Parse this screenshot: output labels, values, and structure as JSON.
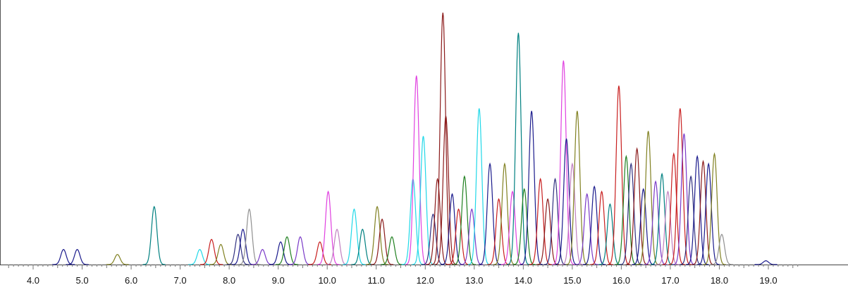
{
  "chart_data": {
    "type": "line",
    "title": "",
    "xlabel": "",
    "ylabel": "",
    "xlim": [
      3.5,
      20.0
    ],
    "ylim": [
      0,
      100
    ],
    "x_ticks": [
      "4.0",
      "5.0",
      "6.0",
      "7.0",
      "8.0",
      "9.0",
      "10.0",
      "11.0",
      "12.0",
      "13.0",
      "14.0",
      "15.0",
      "16.0",
      "17.0",
      "18.0",
      "19.0"
    ],
    "grid": false,
    "legend": "none",
    "series_colors": [
      "#8b1a1a",
      "#008080",
      "#e040e0",
      "#20d8e8",
      "#1a1a8c",
      "#808020",
      "#c81e1e",
      "#208020",
      "#7a3ac8",
      "#303080",
      "#909090",
      "#c080c0"
    ],
    "peaks": [
      {
        "x": 4.62,
        "y": 6,
        "color": "#1a1a8c"
      },
      {
        "x": 4.9,
        "y": 6,
        "color": "#1a1a8c"
      },
      {
        "x": 5.72,
        "y": 4,
        "color": "#808020"
      },
      {
        "x": 6.47,
        "y": 23,
        "color": "#008080"
      },
      {
        "x": 7.4,
        "y": 6,
        "color": "#20d8e8"
      },
      {
        "x": 7.64,
        "y": 10,
        "color": "#c81e1e"
      },
      {
        "x": 7.83,
        "y": 8,
        "color": "#808020"
      },
      {
        "x": 8.18,
        "y": 12,
        "color": "#303080"
      },
      {
        "x": 8.28,
        "y": 14,
        "color": "#1a1a8c"
      },
      {
        "x": 8.41,
        "y": 22,
        "color": "#909090"
      },
      {
        "x": 8.68,
        "y": 6,
        "color": "#7a3ac8"
      },
      {
        "x": 9.05,
        "y": 9,
        "color": "#1a1a8c"
      },
      {
        "x": 9.18,
        "y": 11,
        "color": "#208020"
      },
      {
        "x": 9.45,
        "y": 11,
        "color": "#7a3ac8"
      },
      {
        "x": 9.85,
        "y": 9,
        "color": "#c81e1e"
      },
      {
        "x": 10.02,
        "y": 29,
        "color": "#e040e0"
      },
      {
        "x": 10.2,
        "y": 14,
        "color": "#c080c0"
      },
      {
        "x": 10.55,
        "y": 22,
        "color": "#20d8e8"
      },
      {
        "x": 10.72,
        "y": 14,
        "color": "#008080"
      },
      {
        "x": 11.02,
        "y": 23,
        "color": "#808020"
      },
      {
        "x": 11.12,
        "y": 18,
        "color": "#8b1a1a"
      },
      {
        "x": 11.32,
        "y": 11,
        "color": "#208020"
      },
      {
        "x": 11.75,
        "y": 34,
        "color": "#20d8e8"
      },
      {
        "x": 11.82,
        "y": 75,
        "color": "#e040e0"
      },
      {
        "x": 11.96,
        "y": 51,
        "color": "#20d8e8"
      },
      {
        "x": 12.16,
        "y": 20,
        "color": "#303080"
      },
      {
        "x": 12.25,
        "y": 34,
        "color": "#8b1a1a"
      },
      {
        "x": 12.36,
        "y": 100,
        "color": "#8b1a1a"
      },
      {
        "x": 12.42,
        "y": 59,
        "color": "#8b1a1a"
      },
      {
        "x": 12.55,
        "y": 28,
        "color": "#1a1a8c"
      },
      {
        "x": 12.68,
        "y": 22,
        "color": "#c81e1e"
      },
      {
        "x": 12.8,
        "y": 35,
        "color": "#208020"
      },
      {
        "x": 12.95,
        "y": 22,
        "color": "#7a3ac8"
      },
      {
        "x": 13.1,
        "y": 62,
        "color": "#20d8e8"
      },
      {
        "x": 13.32,
        "y": 40,
        "color": "#1a1a8c"
      },
      {
        "x": 13.5,
        "y": 26,
        "color": "#c81e1e"
      },
      {
        "x": 13.62,
        "y": 40,
        "color": "#808020"
      },
      {
        "x": 13.78,
        "y": 29,
        "color": "#e040e0"
      },
      {
        "x": 13.9,
        "y": 92,
        "color": "#008080"
      },
      {
        "x": 14.02,
        "y": 30,
        "color": "#208020"
      },
      {
        "x": 14.17,
        "y": 61,
        "color": "#1a1a8c"
      },
      {
        "x": 14.35,
        "y": 34,
        "color": "#c81e1e"
      },
      {
        "x": 14.5,
        "y": 26,
        "color": "#8b1a1a"
      },
      {
        "x": 14.65,
        "y": 34,
        "color": "#303080"
      },
      {
        "x": 14.82,
        "y": 81,
        "color": "#e040e0"
      },
      {
        "x": 14.88,
        "y": 50,
        "color": "#1a1a8c"
      },
      {
        "x": 15.0,
        "y": 40,
        "color": "#c080c0"
      },
      {
        "x": 15.1,
        "y": 61,
        "color": "#808020"
      },
      {
        "x": 15.3,
        "y": 28,
        "color": "#7a3ac8"
      },
      {
        "x": 15.45,
        "y": 31,
        "color": "#1a1a8c"
      },
      {
        "x": 15.6,
        "y": 29,
        "color": "#c81e1e"
      },
      {
        "x": 15.77,
        "y": 24,
        "color": "#008080"
      },
      {
        "x": 15.95,
        "y": 71,
        "color": "#c81e1e"
      },
      {
        "x": 16.1,
        "y": 43,
        "color": "#208020"
      },
      {
        "x": 16.2,
        "y": 40,
        "color": "#303080"
      },
      {
        "x": 16.32,
        "y": 46,
        "color": "#8b1a1a"
      },
      {
        "x": 16.45,
        "y": 30,
        "color": "#1a1a8c"
      },
      {
        "x": 16.55,
        "y": 53,
        "color": "#808020"
      },
      {
        "x": 16.7,
        "y": 33,
        "color": "#7a3ac8"
      },
      {
        "x": 16.83,
        "y": 36,
        "color": "#008080"
      },
      {
        "x": 16.95,
        "y": 29,
        "color": "#c080c0"
      },
      {
        "x": 17.07,
        "y": 44,
        "color": "#c81e1e"
      },
      {
        "x": 17.2,
        "y": 62,
        "color": "#c81e1e"
      },
      {
        "x": 17.28,
        "y": 52,
        "color": "#7a3ac8"
      },
      {
        "x": 17.42,
        "y": 35,
        "color": "#303080"
      },
      {
        "x": 17.55,
        "y": 43,
        "color": "#1a1a8c"
      },
      {
        "x": 17.67,
        "y": 41,
        "color": "#8b1a1a"
      },
      {
        "x": 17.78,
        "y": 40,
        "color": "#1a1a8c"
      },
      {
        "x": 17.9,
        "y": 44,
        "color": "#808020"
      },
      {
        "x": 18.05,
        "y": 12,
        "color": "#909090"
      },
      {
        "x": 18.95,
        "y": 1.5,
        "color": "#1a1a8c"
      }
    ]
  }
}
